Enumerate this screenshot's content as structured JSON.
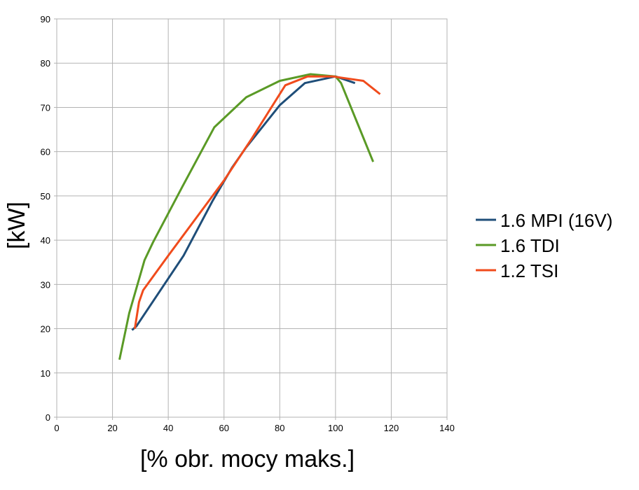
{
  "chart_data": {
    "type": "line",
    "title": "",
    "xlabel": "[% obr. mocy maks.]",
    "ylabel": "[kW]",
    "xlim": [
      0,
      140
    ],
    "ylim": [
      0,
      90
    ],
    "x_ticks": [
      0,
      20,
      40,
      60,
      80,
      100,
      120,
      140
    ],
    "y_ticks": [
      0,
      10,
      20,
      30,
      40,
      50,
      60,
      70,
      80,
      90
    ],
    "grid": true,
    "legend_position": "right",
    "series": [
      {
        "name": "1.6 MPI (16V)",
        "color": "#1f4e79",
        "points": [
          [
            27,
            19.7
          ],
          [
            28.5,
            20.5
          ],
          [
            37,
            28.5
          ],
          [
            45.5,
            36.5
          ],
          [
            56,
            49
          ],
          [
            63,
            56.5
          ],
          [
            68,
            61
          ],
          [
            80,
            70.5
          ],
          [
            89,
            75.5
          ],
          [
            100,
            77
          ],
          [
            107,
            75.5
          ]
        ]
      },
      {
        "name": "1.6 TDI",
        "color": "#5a9a26",
        "points": [
          [
            22.5,
            13
          ],
          [
            26,
            23.5
          ],
          [
            31.5,
            35.5
          ],
          [
            34.5,
            39.5
          ],
          [
            45,
            52
          ],
          [
            56.5,
            65.5
          ],
          [
            68,
            72.3
          ],
          [
            80,
            76
          ],
          [
            91,
            77.5
          ],
          [
            100,
            77
          ],
          [
            102,
            75.5
          ],
          [
            113.5,
            57.7
          ]
        ]
      },
      {
        "name": "1.2 TSI",
        "color": "#f04b1c",
        "points": [
          [
            28,
            20
          ],
          [
            29.5,
            26
          ],
          [
            31,
            28.7
          ],
          [
            40,
            36.5
          ],
          [
            50,
            45
          ],
          [
            60,
            53.5
          ],
          [
            70,
            63
          ],
          [
            82,
            75
          ],
          [
            90,
            77
          ],
          [
            99,
            77
          ],
          [
            110,
            76
          ],
          [
            116,
            73
          ]
        ]
      }
    ]
  }
}
